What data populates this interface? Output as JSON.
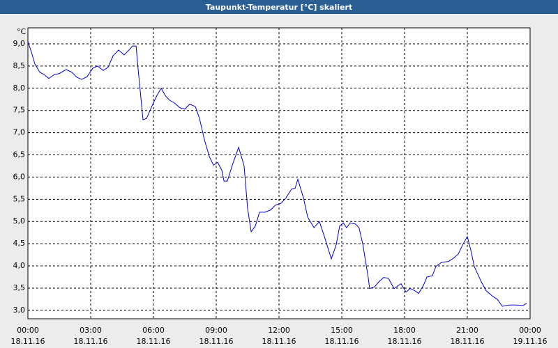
{
  "chart_data": {
    "type": "line",
    "title": "Taupunkt-Temperatur [°C] skaliert",
    "y_label": "°C",
    "x": [
      0,
      0.17,
      0.33,
      0.57,
      0.77,
      1.0,
      1.27,
      1.5,
      1.83,
      2.1,
      2.33,
      2.57,
      2.83,
      3.1,
      3.33,
      3.6,
      3.83,
      4.07,
      4.33,
      4.6,
      4.83,
      5.0,
      5.17,
      5.27,
      5.5,
      5.67,
      5.93,
      6.17,
      6.37,
      6.57,
      6.77,
      7.0,
      7.27,
      7.5,
      7.73,
      8.0,
      8.2,
      8.43,
      8.67,
      8.87,
      9.07,
      9.27,
      9.37,
      9.53,
      9.77,
      10.07,
      10.33,
      10.5,
      10.67,
      10.87,
      11.07,
      11.33,
      11.6,
      11.83,
      12.1,
      12.33,
      12.6,
      12.77,
      12.9,
      13.17,
      13.37,
      13.67,
      13.93,
      14.17,
      14.5,
      14.73,
      14.9,
      15.07,
      15.23,
      15.4,
      15.67,
      15.83,
      16.0,
      16.27,
      16.33,
      16.57,
      16.77,
      17.0,
      17.23,
      17.5,
      17.83,
      18.07,
      18.27,
      18.5,
      18.67,
      18.9,
      19.07,
      19.33,
      19.5,
      19.77,
      20.1,
      20.33,
      20.57,
      20.77,
      21.0,
      21.17,
      21.33,
      21.67,
      21.9,
      22.23,
      22.43,
      22.67,
      23.0,
      23.33,
      23.67,
      23.83
    ],
    "series": [
      {
        "color": "#0000cc",
        "values": [
          9.05,
          8.81,
          8.55,
          8.36,
          8.31,
          8.22,
          8.31,
          8.33,
          8.42,
          8.36,
          8.25,
          8.2,
          8.26,
          8.45,
          8.5,
          8.4,
          8.47,
          8.73,
          8.86,
          8.75,
          8.86,
          8.95,
          8.95,
          8.42,
          7.29,
          7.32,
          7.6,
          7.84,
          8.0,
          7.83,
          7.73,
          7.67,
          7.56,
          7.53,
          7.64,
          7.59,
          7.32,
          6.85,
          6.46,
          6.27,
          6.33,
          6.15,
          5.91,
          5.91,
          6.27,
          6.67,
          6.26,
          5.29,
          4.77,
          4.9,
          5.21,
          5.21,
          5.26,
          5.37,
          5.41,
          5.53,
          5.73,
          5.75,
          5.95,
          5.53,
          5.1,
          4.86,
          5.0,
          4.66,
          4.16,
          4.47,
          4.9,
          4.97,
          4.86,
          4.97,
          4.94,
          4.85,
          4.5,
          3.72,
          3.49,
          3.53,
          3.64,
          3.74,
          3.72,
          3.49,
          3.6,
          3.41,
          3.49,
          3.44,
          3.38,
          3.56,
          3.75,
          3.78,
          3.99,
          4.08,
          4.1,
          4.17,
          4.27,
          4.47,
          4.66,
          4.35,
          3.99,
          3.64,
          3.44,
          3.31,
          3.25,
          3.09,
          3.12,
          3.12,
          3.11,
          3.16
        ]
      }
    ],
    "xlim": [
      0,
      24
    ],
    "xticks": [
      {
        "value": 0,
        "label": "00:00"
      },
      {
        "value": 3,
        "label": "03:00"
      },
      {
        "value": 6,
        "label": "06:00"
      },
      {
        "value": 9,
        "label": "09:00"
      },
      {
        "value": 12,
        "label": "12:00"
      },
      {
        "value": 15,
        "label": "15:00"
      },
      {
        "value": 18,
        "label": "18:00"
      },
      {
        "value": 21,
        "label": "21:00"
      },
      {
        "value": 24,
        "label": "00:00"
      }
    ],
    "xtick_dates": [
      "18.11.16",
      "18.11.16",
      "18.11.16",
      "18.11.16",
      "18.11.16",
      "18.11.16",
      "18.11.16",
      "18.11.16",
      "19.11.16"
    ],
    "ylim": [
      2.81,
      9.36
    ],
    "yticks": [
      {
        "value": 3,
        "label": "3,0"
      },
      {
        "value": 3.5,
        "label": "3,5"
      },
      {
        "value": 4,
        "label": "4,0"
      },
      {
        "value": 4.5,
        "label": "4,5"
      },
      {
        "value": 5,
        "label": "5,0"
      },
      {
        "value": 5.5,
        "label": "5,5"
      },
      {
        "value": 6,
        "label": "6,0"
      },
      {
        "value": 6.5,
        "label": "6,5"
      },
      {
        "value": 7,
        "label": "7,0"
      },
      {
        "value": 7.5,
        "label": "7,5"
      },
      {
        "value": 8,
        "label": "8,0"
      },
      {
        "value": 8.5,
        "label": "8,5"
      },
      {
        "value": 9,
        "label": "9,0"
      }
    ],
    "grid": true
  }
}
